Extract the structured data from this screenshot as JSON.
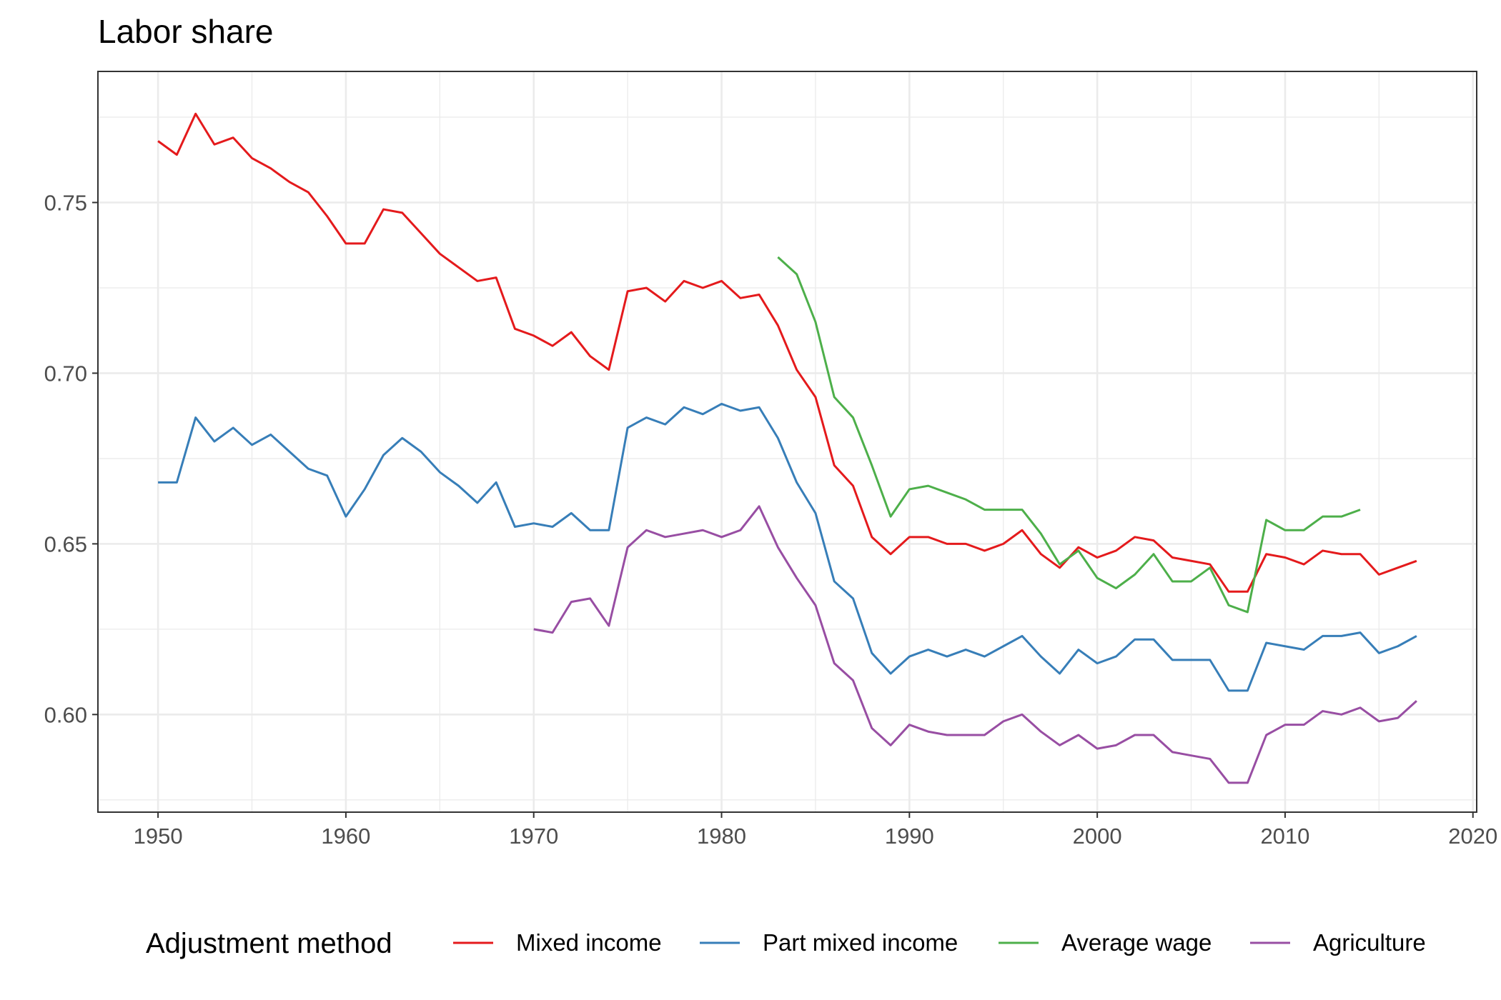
{
  "chart_data": {
    "type": "line",
    "title": "Labor share",
    "xlabel": "",
    "ylabel": "",
    "xlim": [
      1946.8,
      2020.2
    ],
    "ylim": [
      0.5714,
      0.7884
    ],
    "x_ticks": [
      1950,
      1960,
      1970,
      1980,
      1990,
      2000,
      2010,
      2020
    ],
    "x_tick_labels": [
      "1950",
      "1960",
      "1970",
      "1980",
      "1990",
      "2000",
      "2010",
      "2020"
    ],
    "y_ticks": [
      0.6,
      0.65,
      0.7,
      0.75
    ],
    "y_tick_labels": [
      "0.60",
      "0.65",
      "0.70",
      "0.75"
    ],
    "grid": true,
    "legend": {
      "title": "Adjustment method",
      "position": "bottom"
    },
    "series": [
      {
        "name": "Mixed income",
        "color": "#e41a1c",
        "x": [
          1950,
          1951,
          1952,
          1953,
          1954,
          1955,
          1956,
          1957,
          1958,
          1959,
          1960,
          1961,
          1962,
          1963,
          1964,
          1965,
          1966,
          1967,
          1968,
          1969,
          1970,
          1971,
          1972,
          1973,
          1974,
          1975,
          1976,
          1977,
          1978,
          1979,
          1980,
          1981,
          1982,
          1983,
          1984,
          1985,
          1986,
          1987,
          1988,
          1989,
          1990,
          1991,
          1992,
          1993,
          1994,
          1995,
          1996,
          1997,
          1998,
          1999,
          2000,
          2001,
          2002,
          2003,
          2004,
          2005,
          2006,
          2007,
          2008,
          2009,
          2010,
          2011,
          2012,
          2013,
          2014,
          2015,
          2016,
          2017
        ],
        "y": [
          0.768,
          0.764,
          0.776,
          0.767,
          0.769,
          0.763,
          0.76,
          0.756,
          0.753,
          0.746,
          0.738,
          0.738,
          0.748,
          0.747,
          0.741,
          0.735,
          0.731,
          0.727,
          0.728,
          0.713,
          0.711,
          0.708,
          0.712,
          0.705,
          0.701,
          0.724,
          0.725,
          0.721,
          0.727,
          0.725,
          0.727,
          0.722,
          0.723,
          0.714,
          0.701,
          0.693,
          0.673,
          0.667,
          0.652,
          0.647,
          0.652,
          0.652,
          0.65,
          0.65,
          0.648,
          0.65,
          0.654,
          0.647,
          0.643,
          0.649,
          0.646,
          0.648,
          0.652,
          0.651,
          0.646,
          0.645,
          0.644,
          0.636,
          0.636,
          0.647,
          0.646,
          0.644,
          0.648,
          0.647,
          0.647,
          0.641,
          0.643,
          0.645
        ]
      },
      {
        "name": "Part mixed income",
        "color": "#377eb8",
        "x": [
          1950,
          1951,
          1952,
          1953,
          1954,
          1955,
          1956,
          1957,
          1958,
          1959,
          1960,
          1961,
          1962,
          1963,
          1964,
          1965,
          1966,
          1967,
          1968,
          1969,
          1970,
          1971,
          1972,
          1973,
          1974,
          1975,
          1976,
          1977,
          1978,
          1979,
          1980,
          1981,
          1982,
          1983,
          1984,
          1985,
          1986,
          1987,
          1988,
          1989,
          1990,
          1991,
          1992,
          1993,
          1994,
          1995,
          1996,
          1997,
          1998,
          1999,
          2000,
          2001,
          2002,
          2003,
          2004,
          2005,
          2006,
          2007,
          2008,
          2009,
          2010,
          2011,
          2012,
          2013,
          2014,
          2015,
          2016,
          2017
        ],
        "y": [
          0.668,
          0.668,
          0.687,
          0.68,
          0.684,
          0.679,
          0.682,
          0.677,
          0.672,
          0.67,
          0.658,
          0.666,
          0.676,
          0.681,
          0.677,
          0.671,
          0.667,
          0.662,
          0.668,
          0.655,
          0.656,
          0.655,
          0.659,
          0.654,
          0.654,
          0.684,
          0.687,
          0.685,
          0.69,
          0.688,
          0.691,
          0.689,
          0.69,
          0.681,
          0.668,
          0.659,
          0.639,
          0.634,
          0.618,
          0.612,
          0.617,
          0.619,
          0.617,
          0.619,
          0.617,
          0.62,
          0.623,
          0.617,
          0.612,
          0.619,
          0.615,
          0.617,
          0.622,
          0.622,
          0.616,
          0.616,
          0.616,
          0.607,
          0.607,
          0.621,
          0.62,
          0.619,
          0.623,
          0.623,
          0.624,
          0.618,
          0.62,
          0.623
        ]
      },
      {
        "name": "Average wage",
        "color": "#4daf4a",
        "x": [
          1983,
          1984,
          1985,
          1986,
          1987,
          1988,
          1989,
          1990,
          1991,
          1992,
          1993,
          1994,
          1995,
          1996,
          1997,
          1998,
          1999,
          2000,
          2001,
          2002,
          2003,
          2004,
          2005,
          2006,
          2007,
          2008,
          2009,
          2010,
          2011,
          2012,
          2013,
          2014
        ],
        "y": [
          0.734,
          0.729,
          0.715,
          0.693,
          0.687,
          0.673,
          0.658,
          0.666,
          0.667,
          0.665,
          0.663,
          0.66,
          0.66,
          0.66,
          0.653,
          0.644,
          0.648,
          0.64,
          0.637,
          0.641,
          0.647,
          0.639,
          0.639,
          0.643,
          0.632,
          0.63,
          0.657,
          0.654,
          0.654,
          0.658,
          0.658,
          0.66
        ]
      },
      {
        "name": "Agriculture",
        "color": "#984ea3",
        "x": [
          1970,
          1971,
          1972,
          1973,
          1974,
          1975,
          1976,
          1977,
          1978,
          1979,
          1980,
          1981,
          1982,
          1983,
          1984,
          1985,
          1986,
          1987,
          1988,
          1989,
          1990,
          1991,
          1992,
          1993,
          1994,
          1995,
          1996,
          1997,
          1998,
          1999,
          2000,
          2001,
          2002,
          2003,
          2004,
          2005,
          2006,
          2007,
          2008,
          2009,
          2010,
          2011,
          2012,
          2013,
          2014,
          2015,
          2016,
          2017
        ],
        "y": [
          0.625,
          0.624,
          0.633,
          0.634,
          0.626,
          0.649,
          0.654,
          0.652,
          0.653,
          0.654,
          0.652,
          0.654,
          0.661,
          0.649,
          0.64,
          0.632,
          0.615,
          0.61,
          0.596,
          0.591,
          0.597,
          0.595,
          0.594,
          0.594,
          0.594,
          0.598,
          0.6,
          0.595,
          0.591,
          0.594,
          0.59,
          0.591,
          0.594,
          0.594,
          0.589,
          0.588,
          0.587,
          0.58,
          0.58,
          0.594,
          0.597,
          0.597,
          0.601,
          0.6,
          0.602,
          0.598,
          0.599,
          0.604
        ]
      }
    ]
  }
}
